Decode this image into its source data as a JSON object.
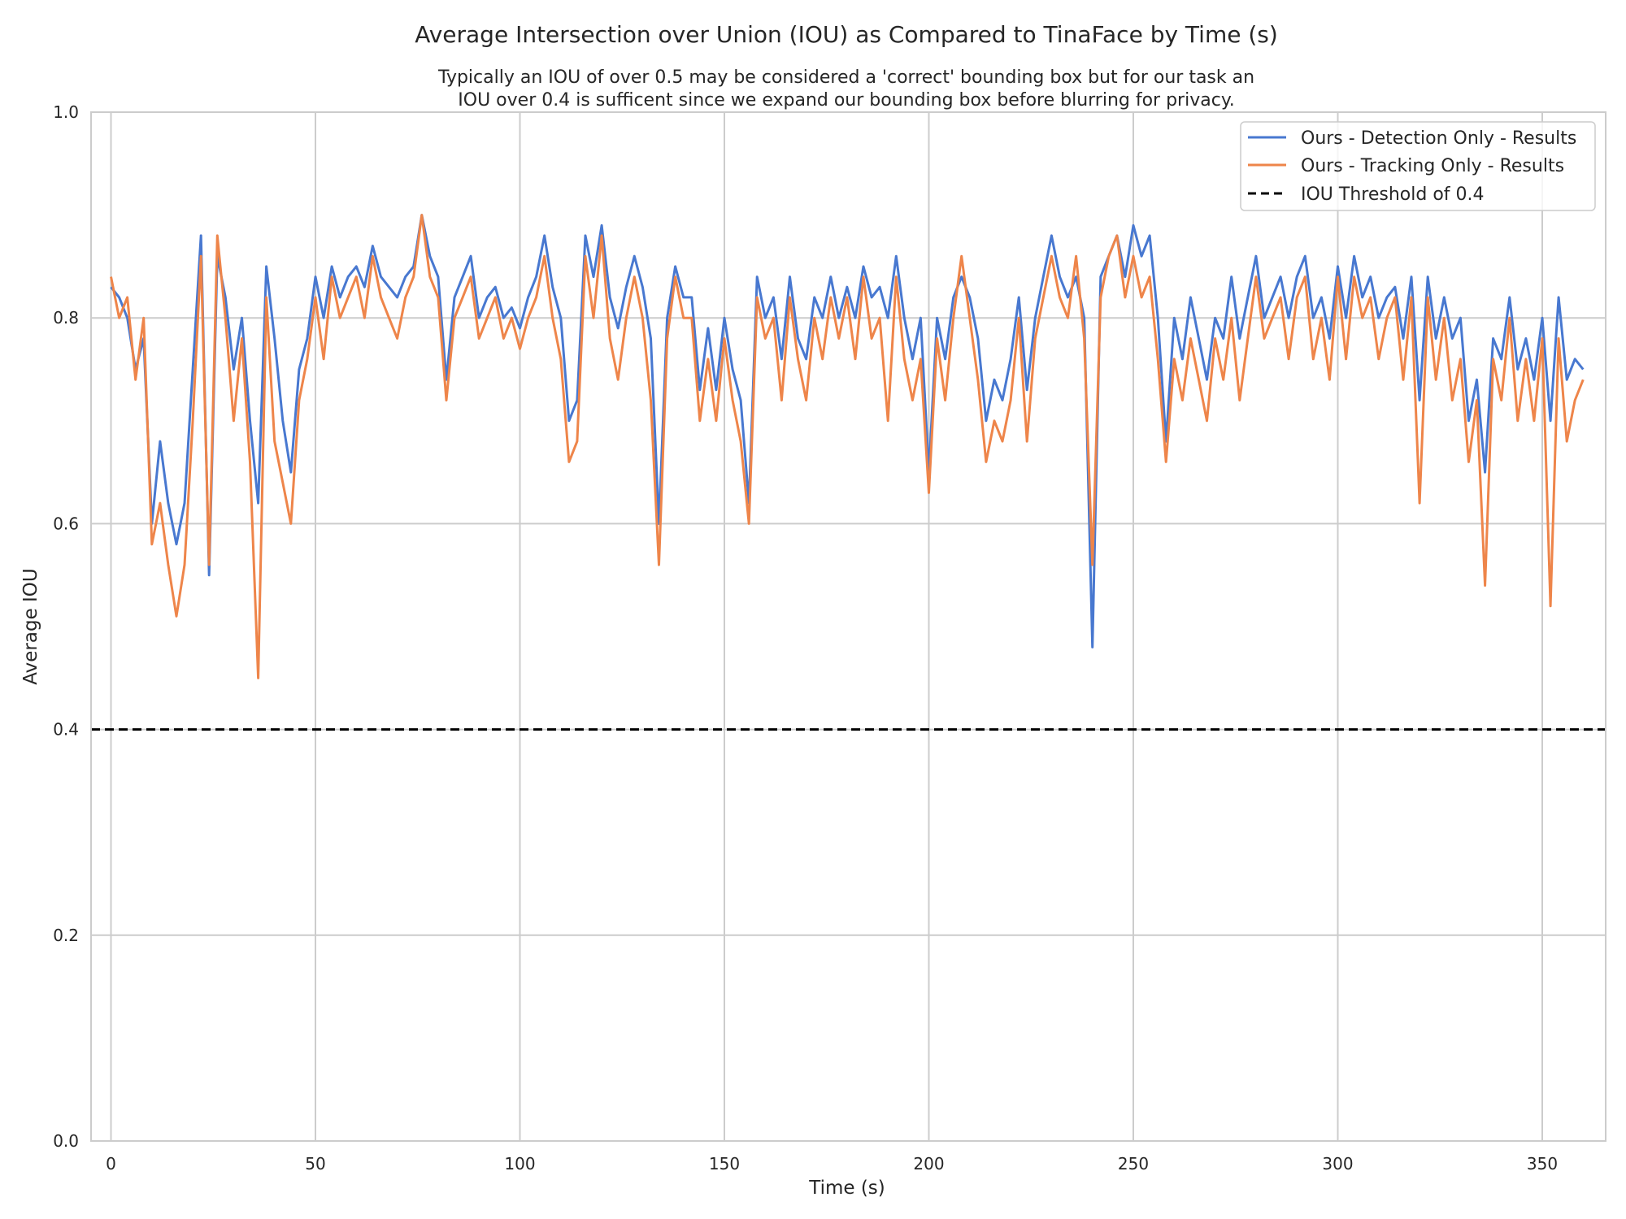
{
  "chart_data": {
    "type": "line",
    "title": "Average Intersection over Union (IOU) as Compared to TinaFace by Time (s)",
    "subtitle": [
      "Typically an IOU of over 0.5 may be considered a 'correct' bounding box but for our task an",
      "IOU over 0.4 is sufficent since we expand our bounding box before blurring for privacy."
    ],
    "xlabel": "Time (s)",
    "ylabel": "Average IOU",
    "xlim": [
      -5,
      365
    ],
    "ylim": [
      0,
      1.0
    ],
    "xticks": [
      "0",
      "50",
      "100",
      "150",
      "200",
      "250",
      "300",
      "350"
    ],
    "yticks": [
      "0.0",
      "0.2",
      "0.4",
      "0.6",
      "0.8",
      "1.0"
    ],
    "grid": true,
    "legend_position": "top-right",
    "x_step": 2,
    "series": [
      {
        "name": "Ours - Detection Only - Results",
        "color": "#4878d0",
        "values": [
          0.83,
          0.82,
          0.8,
          0.75,
          0.78,
          0.6,
          0.68,
          0.62,
          0.58,
          0.62,
          0.75,
          0.88,
          0.55,
          0.86,
          0.82,
          0.75,
          0.8,
          0.7,
          0.62,
          0.85,
          0.78,
          0.7,
          0.65,
          0.75,
          0.78,
          0.84,
          0.8,
          0.85,
          0.82,
          0.84,
          0.85,
          0.83,
          0.87,
          0.84,
          0.83,
          0.82,
          0.84,
          0.85,
          0.9,
          0.86,
          0.84,
          0.74,
          0.82,
          0.84,
          0.86,
          0.8,
          0.82,
          0.83,
          0.8,
          0.81,
          0.79,
          0.82,
          0.84,
          0.88,
          0.83,
          0.8,
          0.7,
          0.72,
          0.88,
          0.84,
          0.89,
          0.82,
          0.79,
          0.83,
          0.86,
          0.83,
          0.78,
          0.6,
          0.8,
          0.85,
          0.82,
          0.82,
          0.73,
          0.79,
          0.73,
          0.8,
          0.75,
          0.72,
          0.62,
          0.84,
          0.8,
          0.82,
          0.76,
          0.84,
          0.78,
          0.76,
          0.82,
          0.8,
          0.84,
          0.8,
          0.83,
          0.8,
          0.85,
          0.82,
          0.83,
          0.8,
          0.86,
          0.8,
          0.76,
          0.8,
          0.65,
          0.8,
          0.76,
          0.82,
          0.84,
          0.82,
          0.78,
          0.7,
          0.74,
          0.72,
          0.76,
          0.82,
          0.73,
          0.8,
          0.84,
          0.88,
          0.84,
          0.82,
          0.84,
          0.8,
          0.48,
          0.84,
          0.86,
          0.88,
          0.84,
          0.89,
          0.86,
          0.88,
          0.8,
          0.68,
          0.8,
          0.76,
          0.82,
          0.78,
          0.74,
          0.8,
          0.78,
          0.84,
          0.78,
          0.82,
          0.86,
          0.8,
          0.82,
          0.84,
          0.8,
          0.84,
          0.86,
          0.8,
          0.82,
          0.78,
          0.85,
          0.8,
          0.86,
          0.82,
          0.84,
          0.8,
          0.82,
          0.83,
          0.78,
          0.84,
          0.72,
          0.84,
          0.78,
          0.82,
          0.78,
          0.8,
          0.7,
          0.74,
          0.65,
          0.78,
          0.76,
          0.82,
          0.75,
          0.78,
          0.74,
          0.8,
          0.7,
          0.82,
          0.74,
          0.76,
          0.75
        ]
      },
      {
        "name": "Ours - Tracking Only - Results",
        "color": "#ee854a",
        "values": [
          0.84,
          0.8,
          0.82,
          0.74,
          0.8,
          0.58,
          0.62,
          0.56,
          0.51,
          0.56,
          0.7,
          0.86,
          0.56,
          0.88,
          0.8,
          0.7,
          0.78,
          0.66,
          0.45,
          0.82,
          0.68,
          0.64,
          0.6,
          0.72,
          0.76,
          0.82,
          0.76,
          0.84,
          0.8,
          0.82,
          0.84,
          0.8,
          0.86,
          0.82,
          0.8,
          0.78,
          0.82,
          0.84,
          0.9,
          0.84,
          0.82,
          0.72,
          0.8,
          0.82,
          0.84,
          0.78,
          0.8,
          0.82,
          0.78,
          0.8,
          0.77,
          0.8,
          0.82,
          0.86,
          0.8,
          0.76,
          0.66,
          0.68,
          0.86,
          0.8,
          0.88,
          0.78,
          0.74,
          0.8,
          0.84,
          0.8,
          0.72,
          0.56,
          0.78,
          0.84,
          0.8,
          0.8,
          0.7,
          0.76,
          0.7,
          0.78,
          0.72,
          0.68,
          0.6,
          0.82,
          0.78,
          0.8,
          0.72,
          0.82,
          0.76,
          0.72,
          0.8,
          0.76,
          0.82,
          0.78,
          0.82,
          0.76,
          0.84,
          0.78,
          0.8,
          0.7,
          0.84,
          0.76,
          0.72,
          0.76,
          0.63,
          0.78,
          0.72,
          0.8,
          0.86,
          0.8,
          0.74,
          0.66,
          0.7,
          0.68,
          0.72,
          0.8,
          0.68,
          0.78,
          0.82,
          0.86,
          0.82,
          0.8,
          0.86,
          0.78,
          0.56,
          0.82,
          0.86,
          0.88,
          0.82,
          0.86,
          0.82,
          0.84,
          0.76,
          0.66,
          0.76,
          0.72,
          0.78,
          0.74,
          0.7,
          0.78,
          0.74,
          0.8,
          0.72,
          0.78,
          0.84,
          0.78,
          0.8,
          0.82,
          0.76,
          0.82,
          0.84,
          0.76,
          0.8,
          0.74,
          0.84,
          0.76,
          0.84,
          0.8,
          0.82,
          0.76,
          0.8,
          0.82,
          0.74,
          0.82,
          0.62,
          0.82,
          0.74,
          0.8,
          0.72,
          0.76,
          0.66,
          0.72,
          0.54,
          0.76,
          0.72,
          0.8,
          0.7,
          0.76,
          0.7,
          0.78,
          0.52,
          0.78,
          0.68,
          0.72,
          0.74
        ]
      },
      {
        "name": "IOU Threshold of 0.4",
        "color": "#000000",
        "style": "dashed",
        "values": [
          0.4
        ]
      }
    ]
  }
}
